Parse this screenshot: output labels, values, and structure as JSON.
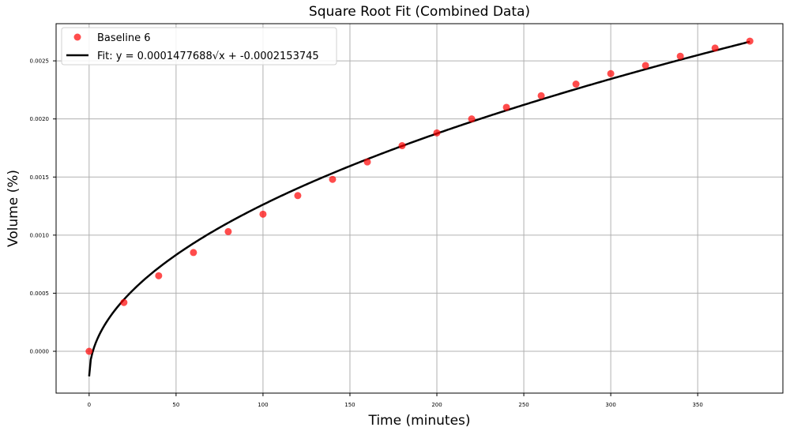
{
  "chart_data": {
    "type": "scatter",
    "title": "Square Root Fit (Combined Data)",
    "xlabel": "Time (minutes)",
    "ylabel": "Volume (%)",
    "xlim": [
      -19,
      399
    ],
    "ylim": [
      -0.00036,
      0.00282
    ],
    "x_ticks": [
      0,
      50,
      100,
      150,
      200,
      250,
      300,
      350
    ],
    "x_tick_labels": [
      "0",
      "50",
      "100",
      "150",
      "200",
      "250",
      "300",
      "350"
    ],
    "y_ticks": [
      0,
      0.0005,
      0.001,
      0.0015,
      0.002,
      0.0025
    ],
    "y_tick_labels": [
      "0.0000",
      "0.0005",
      "0.0010",
      "0.0015",
      "0.0020",
      "0.0025"
    ],
    "grid": true,
    "legend_position": "top-left",
    "series": [
      {
        "name": "Baseline 6",
        "kind": "scatter",
        "color": "#ff0000",
        "x": [
          0,
          20,
          40,
          60,
          80,
          100,
          120,
          140,
          160,
          180,
          200,
          220,
          240,
          260,
          280,
          300,
          320,
          340,
          360,
          380
        ],
        "y": [
          0.0,
          0.00042,
          0.00065,
          0.00085,
          0.00103,
          0.00118,
          0.00134,
          0.00148,
          0.00163,
          0.00177,
          0.00188,
          0.002,
          0.0021,
          0.0022,
          0.0023,
          0.00239,
          0.00246,
          0.00254,
          0.00261,
          0.00267
        ]
      },
      {
        "name": "Fit: y = 0.0001477688√x + -0.0002153745",
        "kind": "line",
        "color": "#000000",
        "function": "sqrt",
        "coef_a": 0.0001477688,
        "coef_b": -0.0002153745,
        "x_range": [
          0,
          380
        ]
      }
    ]
  }
}
